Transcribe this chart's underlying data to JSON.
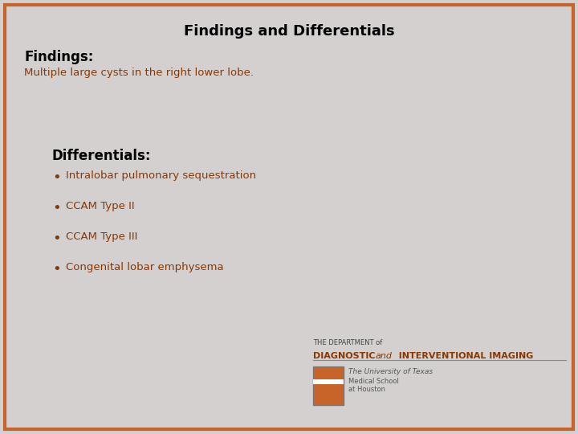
{
  "title": "Findings and Differentials",
  "title_fontsize": 13,
  "title_color": "#000000",
  "findings_label": "Findings:",
  "findings_label_fontsize": 12,
  "findings_label_color": "#000000",
  "findings_text": "Multiple large cysts in the right lower lobe.",
  "findings_text_fontsize": 9.5,
  "findings_text_color": "#8B3800",
  "differentials_label": "Differentials:",
  "differentials_label_fontsize": 12,
  "differentials_label_color": "#000000",
  "differentials_items": [
    "Intralobar pulmonary sequestration",
    "CCAM Type II",
    "CCAM Type III",
    "Congenital lobar emphysema"
  ],
  "differentials_text_fontsize": 9.5,
  "differentials_text_color": "#8B3800",
  "bullet_color": "#8B3800",
  "background_color": "#d4d0d0",
  "border_color": "#c8642a",
  "border_width": 3,
  "logo_text_line1": "THE DEPARTMENT of",
  "logo_text_line2_part1": "DIAGNOSTIC ",
  "logo_text_line2_italic": "and",
  "logo_text_line2_part2": "  INTERVENTIONAL IMAGING",
  "logo_text_line3": "The University of Texas",
  "logo_text_line4": "Medical School",
  "logo_text_line5": "at Houston",
  "logo_color_main": "#8B3800",
  "logo_color_secondary": "#555555"
}
